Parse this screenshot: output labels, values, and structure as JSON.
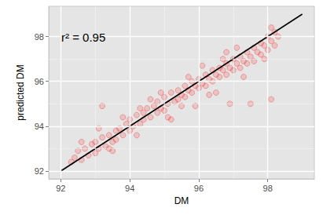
{
  "chart_data": {
    "type": "scatter",
    "x_label": "DM",
    "y_label": "predicted DM",
    "annotation": "r² = 0.95",
    "xlim": [
      91.65,
      99.35
    ],
    "ylim": [
      91.65,
      99.35
    ],
    "xticks": [
      92,
      94,
      96,
      98
    ],
    "yticks": [
      92,
      94,
      96,
      98
    ],
    "grid": true,
    "series": [
      {
        "type": "scatter",
        "color": "#ff0000",
        "marker": "circle",
        "x": [
          92.4,
          92.5,
          92.6,
          92.7,
          92.8,
          92.9,
          93.0,
          93.0,
          93.1,
          93.2,
          93.2,
          93.3,
          93.4,
          93.5,
          93.6,
          93.6,
          93.7,
          93.8,
          93.9,
          94.0,
          94.0,
          94.1,
          94.2,
          94.3,
          94.4,
          94.4,
          94.5,
          94.6,
          94.7,
          94.8,
          94.8,
          94.9,
          95.0,
          95.0,
          95.1,
          95.2,
          95.2,
          95.3,
          95.4,
          95.4,
          95.5,
          95.6,
          95.6,
          95.7,
          95.8,
          95.8,
          95.9,
          95.9,
          96.0,
          96.0,
          96.1,
          96.2,
          96.2,
          96.3,
          96.4,
          96.4,
          96.5,
          96.5,
          96.6,
          96.6,
          96.7,
          96.8,
          96.8,
          96.9,
          96.9,
          97.0,
          97.0,
          97.1,
          97.2,
          97.2,
          97.3,
          97.4,
          97.4,
          97.5,
          97.5,
          97.6,
          97.6,
          97.7,
          97.8,
          97.8,
          97.9,
          98.0,
          98.0,
          98.1,
          98.1,
          98.2,
          98.2,
          98.3,
          98.1,
          92.6,
          93.1,
          93.5,
          94.2,
          94.6,
          95.1,
          95.7,
          96.3,
          96.7,
          97.3,
          97.9,
          92.3,
          93.8,
          94.9,
          96.1,
          97.1,
          95.5,
          94.3,
          93.4,
          96.8
        ],
        "values": [
          92.6,
          92.9,
          92.5,
          93.0,
          92.7,
          93.2,
          92.8,
          93.3,
          93.0,
          93.5,
          94.9,
          93.1,
          93.6,
          93.3,
          93.8,
          93.4,
          93.9,
          93.6,
          94.1,
          93.8,
          94.3,
          94.0,
          94.5,
          94.1,
          94.6,
          94.3,
          94.8,
          94.4,
          94.9,
          94.6,
          95.1,
          94.8,
          95.3,
          94.7,
          95.0,
          95.5,
          94.3,
          95.1,
          95.6,
          95.2,
          95.4,
          95.8,
          95.3,
          95.6,
          96.0,
          95.5,
          95.8,
          94.9,
          96.1,
          95.7,
          95.9,
          96.3,
          95.8,
          96.1,
          96.5,
          96.0,
          96.3,
          95.5,
          96.6,
          96.2,
          96.5,
          96.8,
          96.3,
          96.6,
          95.0,
          97.0,
          96.5,
          96.8,
          97.1,
          96.6,
          96.9,
          97.3,
          96.8,
          97.1,
          95.0,
          97.5,
          96.9,
          97.3,
          97.7,
          97.2,
          97.6,
          98.0,
          97.4,
          97.8,
          95.2,
          98.2,
          97.6,
          98.0,
          98.4,
          93.3,
          93.9,
          92.9,
          93.6,
          95.2,
          94.4,
          96.2,
          95.4,
          97.0,
          96.2,
          97.0,
          92.4,
          94.4,
          95.5,
          96.7,
          97.5,
          94.9,
          94.8,
          93.0,
          97.3
        ]
      },
      {
        "type": "line",
        "color": "#000000",
        "line_style": "solid",
        "x": [
          92,
          99
        ],
        "values": [
          92,
          99
        ]
      }
    ]
  }
}
